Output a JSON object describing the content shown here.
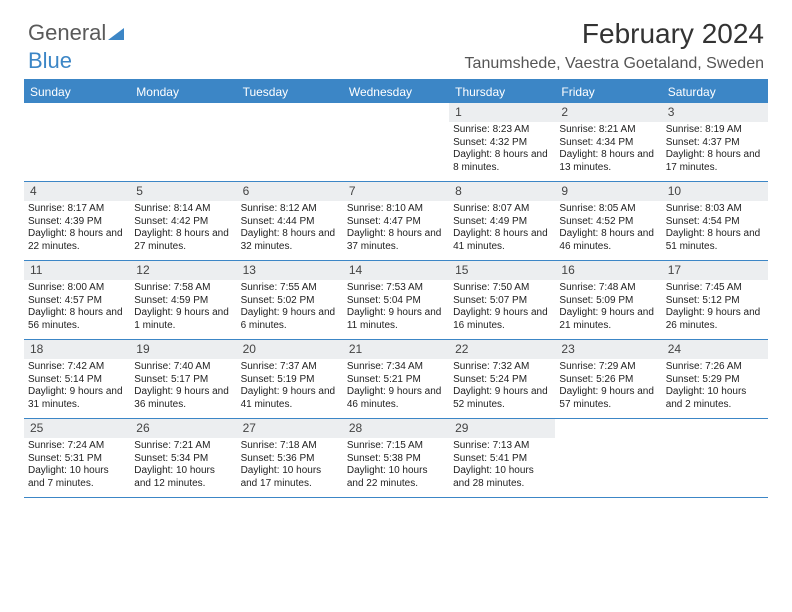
{
  "logo": {
    "text1": "General",
    "text2": "Blue"
  },
  "title": "February 2024",
  "subtitle": "Tanumshede, Vaestra Goetaland, Sweden",
  "colors": {
    "accent": "#3c86c6",
    "header_bg": "#3c86c6",
    "header_fg": "#ffffff",
    "daynum_bg": "#eceef0",
    "text": "#222222",
    "logo_gray": "#5a5a5a"
  },
  "day_headers": [
    "Sunday",
    "Monday",
    "Tuesday",
    "Wednesday",
    "Thursday",
    "Friday",
    "Saturday"
  ],
  "weeks": [
    [
      null,
      null,
      null,
      null,
      {
        "n": "1",
        "sr": "8:23 AM",
        "ss": "4:32 PM",
        "dl": "8 hours and 8 minutes."
      },
      {
        "n": "2",
        "sr": "8:21 AM",
        "ss": "4:34 PM",
        "dl": "8 hours and 13 minutes."
      },
      {
        "n": "3",
        "sr": "8:19 AM",
        "ss": "4:37 PM",
        "dl": "8 hours and 17 minutes."
      }
    ],
    [
      {
        "n": "4",
        "sr": "8:17 AM",
        "ss": "4:39 PM",
        "dl": "8 hours and 22 minutes."
      },
      {
        "n": "5",
        "sr": "8:14 AM",
        "ss": "4:42 PM",
        "dl": "8 hours and 27 minutes."
      },
      {
        "n": "6",
        "sr": "8:12 AM",
        "ss": "4:44 PM",
        "dl": "8 hours and 32 minutes."
      },
      {
        "n": "7",
        "sr": "8:10 AM",
        "ss": "4:47 PM",
        "dl": "8 hours and 37 minutes."
      },
      {
        "n": "8",
        "sr": "8:07 AM",
        "ss": "4:49 PM",
        "dl": "8 hours and 41 minutes."
      },
      {
        "n": "9",
        "sr": "8:05 AM",
        "ss": "4:52 PM",
        "dl": "8 hours and 46 minutes."
      },
      {
        "n": "10",
        "sr": "8:03 AM",
        "ss": "4:54 PM",
        "dl": "8 hours and 51 minutes."
      }
    ],
    [
      {
        "n": "11",
        "sr": "8:00 AM",
        "ss": "4:57 PM",
        "dl": "8 hours and 56 minutes."
      },
      {
        "n": "12",
        "sr": "7:58 AM",
        "ss": "4:59 PM",
        "dl": "9 hours and 1 minute."
      },
      {
        "n": "13",
        "sr": "7:55 AM",
        "ss": "5:02 PM",
        "dl": "9 hours and 6 minutes."
      },
      {
        "n": "14",
        "sr": "7:53 AM",
        "ss": "5:04 PM",
        "dl": "9 hours and 11 minutes."
      },
      {
        "n": "15",
        "sr": "7:50 AM",
        "ss": "5:07 PM",
        "dl": "9 hours and 16 minutes."
      },
      {
        "n": "16",
        "sr": "7:48 AM",
        "ss": "5:09 PM",
        "dl": "9 hours and 21 minutes."
      },
      {
        "n": "17",
        "sr": "7:45 AM",
        "ss": "5:12 PM",
        "dl": "9 hours and 26 minutes."
      }
    ],
    [
      {
        "n": "18",
        "sr": "7:42 AM",
        "ss": "5:14 PM",
        "dl": "9 hours and 31 minutes."
      },
      {
        "n": "19",
        "sr": "7:40 AM",
        "ss": "5:17 PM",
        "dl": "9 hours and 36 minutes."
      },
      {
        "n": "20",
        "sr": "7:37 AM",
        "ss": "5:19 PM",
        "dl": "9 hours and 41 minutes."
      },
      {
        "n": "21",
        "sr": "7:34 AM",
        "ss": "5:21 PM",
        "dl": "9 hours and 46 minutes."
      },
      {
        "n": "22",
        "sr": "7:32 AM",
        "ss": "5:24 PM",
        "dl": "9 hours and 52 minutes."
      },
      {
        "n": "23",
        "sr": "7:29 AM",
        "ss": "5:26 PM",
        "dl": "9 hours and 57 minutes."
      },
      {
        "n": "24",
        "sr": "7:26 AM",
        "ss": "5:29 PM",
        "dl": "10 hours and 2 minutes."
      }
    ],
    [
      {
        "n": "25",
        "sr": "7:24 AM",
        "ss": "5:31 PM",
        "dl": "10 hours and 7 minutes."
      },
      {
        "n": "26",
        "sr": "7:21 AM",
        "ss": "5:34 PM",
        "dl": "10 hours and 12 minutes."
      },
      {
        "n": "27",
        "sr": "7:18 AM",
        "ss": "5:36 PM",
        "dl": "10 hours and 17 minutes."
      },
      {
        "n": "28",
        "sr": "7:15 AM",
        "ss": "5:38 PM",
        "dl": "10 hours and 22 minutes."
      },
      {
        "n": "29",
        "sr": "7:13 AM",
        "ss": "5:41 PM",
        "dl": "10 hours and 28 minutes."
      },
      null,
      null
    ]
  ],
  "labels": {
    "sunrise": "Sunrise: ",
    "sunset": "Sunset: ",
    "daylight": "Daylight: "
  },
  "typography": {
    "title_pt": 28,
    "subtitle_pt": 16,
    "dayhead_pt": 12,
    "cell_pt": 10
  }
}
